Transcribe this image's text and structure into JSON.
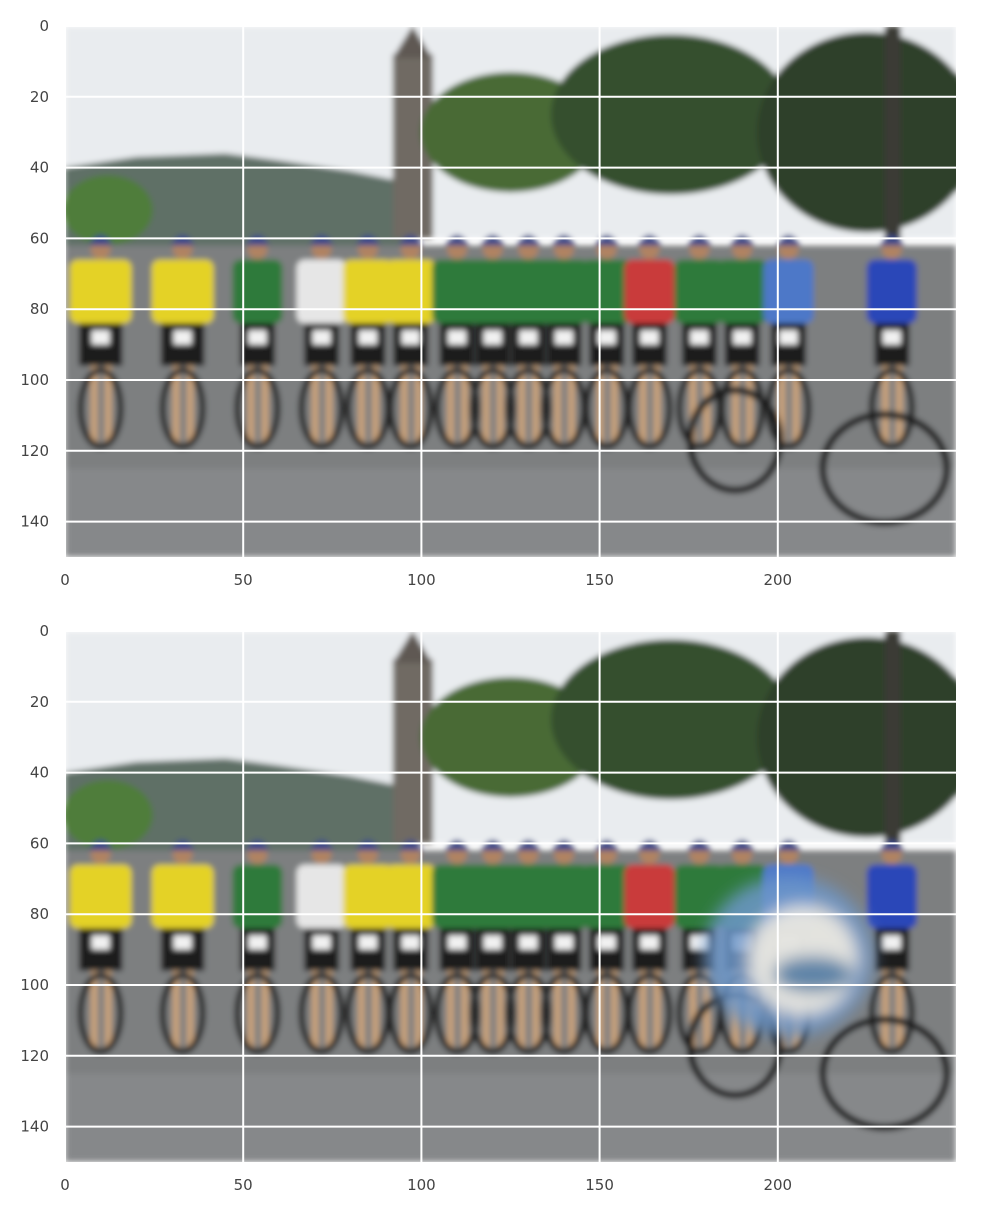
{
  "figure": {
    "panels": [
      {
        "id": "top",
        "description_visible": "Photo of a group of cyclists with mountain bikes posing on a road, trees and a church tower behind",
        "overlay": false
      },
      {
        "id": "bottom",
        "description_visible": "Same photo with a blurred bluish-white patch over the cyclist near x=200, y=80",
        "overlay": true
      }
    ],
    "x_ticks": [
      "0",
      "50",
      "100",
      "150",
      "200"
    ],
    "y_ticks": [
      "0",
      "20",
      "40",
      "60",
      "80",
      "100",
      "120",
      "140"
    ],
    "x_range": [
      0,
      250
    ],
    "y_range": [
      0,
      150
    ],
    "grid": true,
    "grid_color": "#ffffff"
  },
  "colors": {
    "sky": "#e9ecef",
    "hill": "#5f6f66",
    "trees": "#35502f",
    "road": "#7d7f80",
    "yellow_jersey": "#e4d228",
    "green_jersey": "#2f7a3a",
    "blue_jersey": "#2a47b8",
    "red_jersey": "#c93a3a",
    "white_jersey": "#e6e6e6",
    "overlay_blue": "#6c97c9",
    "overlay_white": "#f0ebe2"
  }
}
